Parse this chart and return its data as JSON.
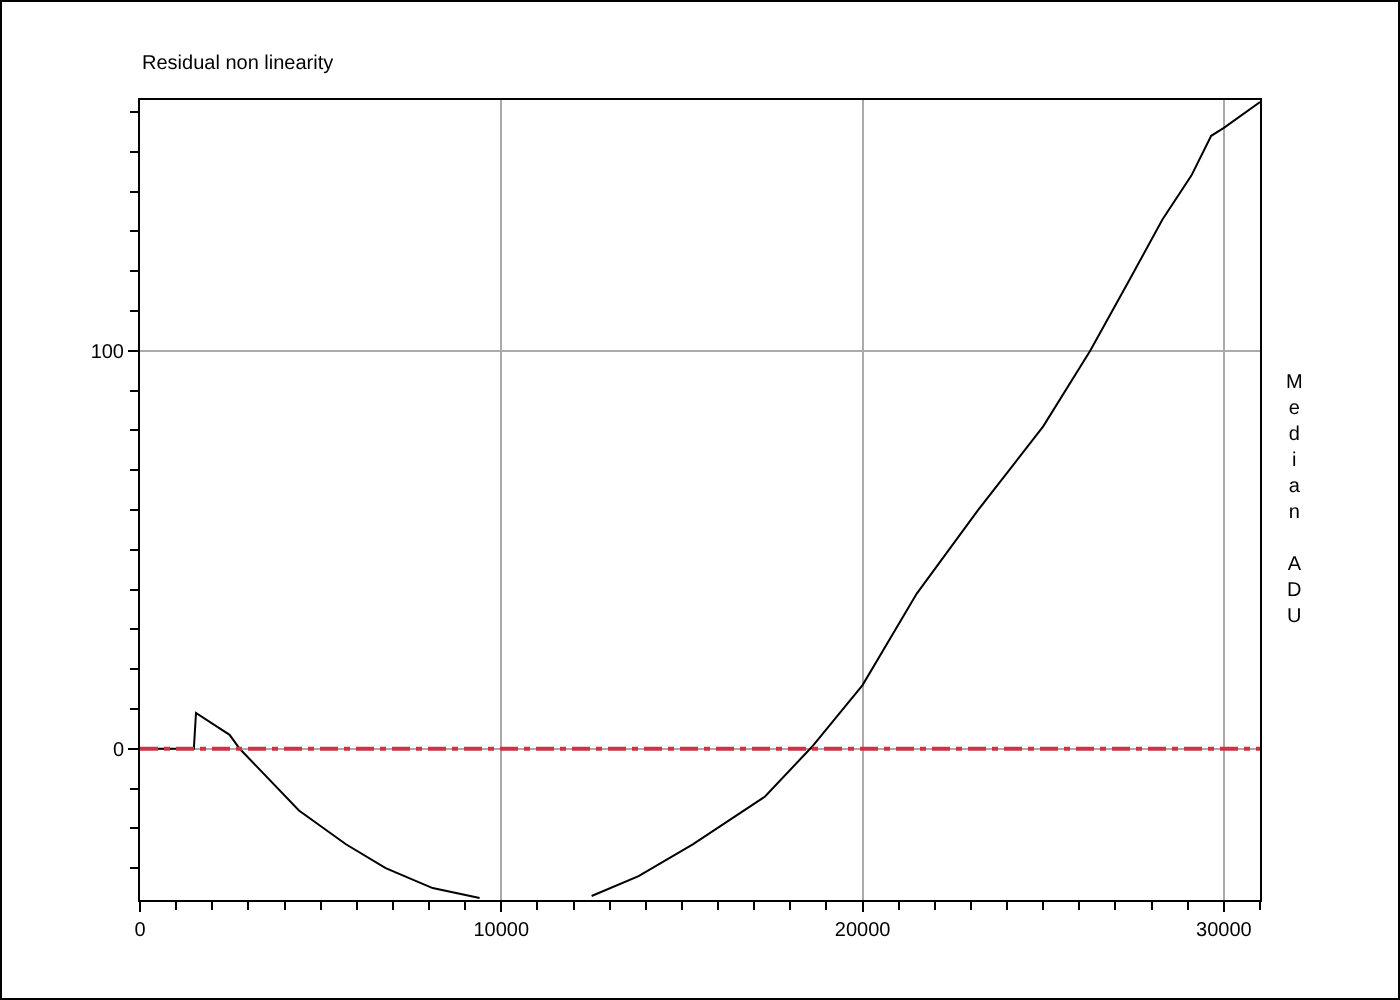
{
  "chart_data": {
    "type": "line",
    "title": "Residual non linearity",
    "ylabel": "Median ADU",
    "x": [
      0,
      1490,
      1550,
      2480,
      2760,
      4400,
      5700,
      6800,
      8100,
      9400,
      10000,
      11000,
      12500,
      13800,
      15300,
      17300,
      18600,
      20000,
      21500,
      23200,
      25000,
      26300,
      27400,
      28300,
      29100,
      29650,
      30000,
      31000
    ],
    "series": [
      {
        "color": "#000000",
        "values": [
          0,
          0,
          9,
          3.5,
          0,
          -15.5,
          -24,
          -30,
          -35,
          -37.5,
          null,
          null,
          -37,
          -32,
          -24,
          -12,
          0.5,
          16,
          39,
          60,
          81,
          100,
          118,
          133,
          144,
          154,
          156,
          162.5
        ]
      }
    ],
    "xlim": [
      0,
      31000
    ],
    "ylim": [
      -38,
      163
    ],
    "xticks": [
      0,
      {
        "value": 1000,
        "label": null
      },
      {
        "value": 2000,
        "label": null
      },
      {
        "value": 3000,
        "label": null
      },
      {
        "value": 4000,
        "label": null
      },
      {
        "value": 5000,
        "label": null
      },
      {
        "value": 6000,
        "label": null
      },
      {
        "value": 7000,
        "label": null
      },
      {
        "value": 8000,
        "label": null
      },
      {
        "value": 9000,
        "label": null
      },
      10000,
      {
        "value": 11000,
        "label": null
      },
      {
        "value": 12000,
        "label": null
      },
      {
        "value": 13000,
        "label": null
      },
      {
        "value": 14000,
        "label": null
      },
      {
        "value": 15000,
        "label": null
      },
      {
        "value": 16000,
        "label": null
      },
      {
        "value": 17000,
        "label": null
      },
      {
        "value": 18000,
        "label": null
      },
      {
        "value": 19000,
        "label": null
      },
      20000,
      {
        "value": 21000,
        "label": null
      },
      {
        "value": 22000,
        "label": null
      },
      {
        "value": 23000,
        "label": null
      },
      {
        "value": 24000,
        "label": null
      },
      {
        "value": 25000,
        "label": null
      },
      {
        "value": 26000,
        "label": null
      },
      {
        "value": 27000,
        "label": null
      },
      {
        "value": 28000,
        "label": null
      },
      {
        "value": 29000,
        "label": null
      },
      30000,
      {
        "value": 31000,
        "label": null
      }
    ],
    "yticks": [
      {
        "value": -30,
        "label": null
      },
      {
        "value": -20,
        "label": null
      },
      {
        "value": -10,
        "label": null
      },
      0,
      {
        "value": 10,
        "label": null
      },
      {
        "value": 20,
        "label": null
      },
      {
        "value": 30,
        "label": null
      },
      {
        "value": 40,
        "label": null
      },
      {
        "value": 50,
        "label": null
      },
      {
        "value": 60,
        "label": null
      },
      {
        "value": 70,
        "label": null
      },
      {
        "value": 80,
        "label": null
      },
      {
        "value": 90,
        "label": null
      },
      100,
      {
        "value": 110,
        "label": null
      },
      {
        "value": 120,
        "label": null
      },
      {
        "value": 130,
        "label": null
      },
      {
        "value": 140,
        "label": null
      },
      {
        "value": 150,
        "label": null
      },
      {
        "value": 160,
        "label": null
      }
    ],
    "ref_lines": [
      {
        "axis": "y",
        "value": 0,
        "color": "#cc3344",
        "line_style": "dashed"
      }
    ],
    "grid": true,
    "marker": "none",
    "line_style": "solid"
  }
}
